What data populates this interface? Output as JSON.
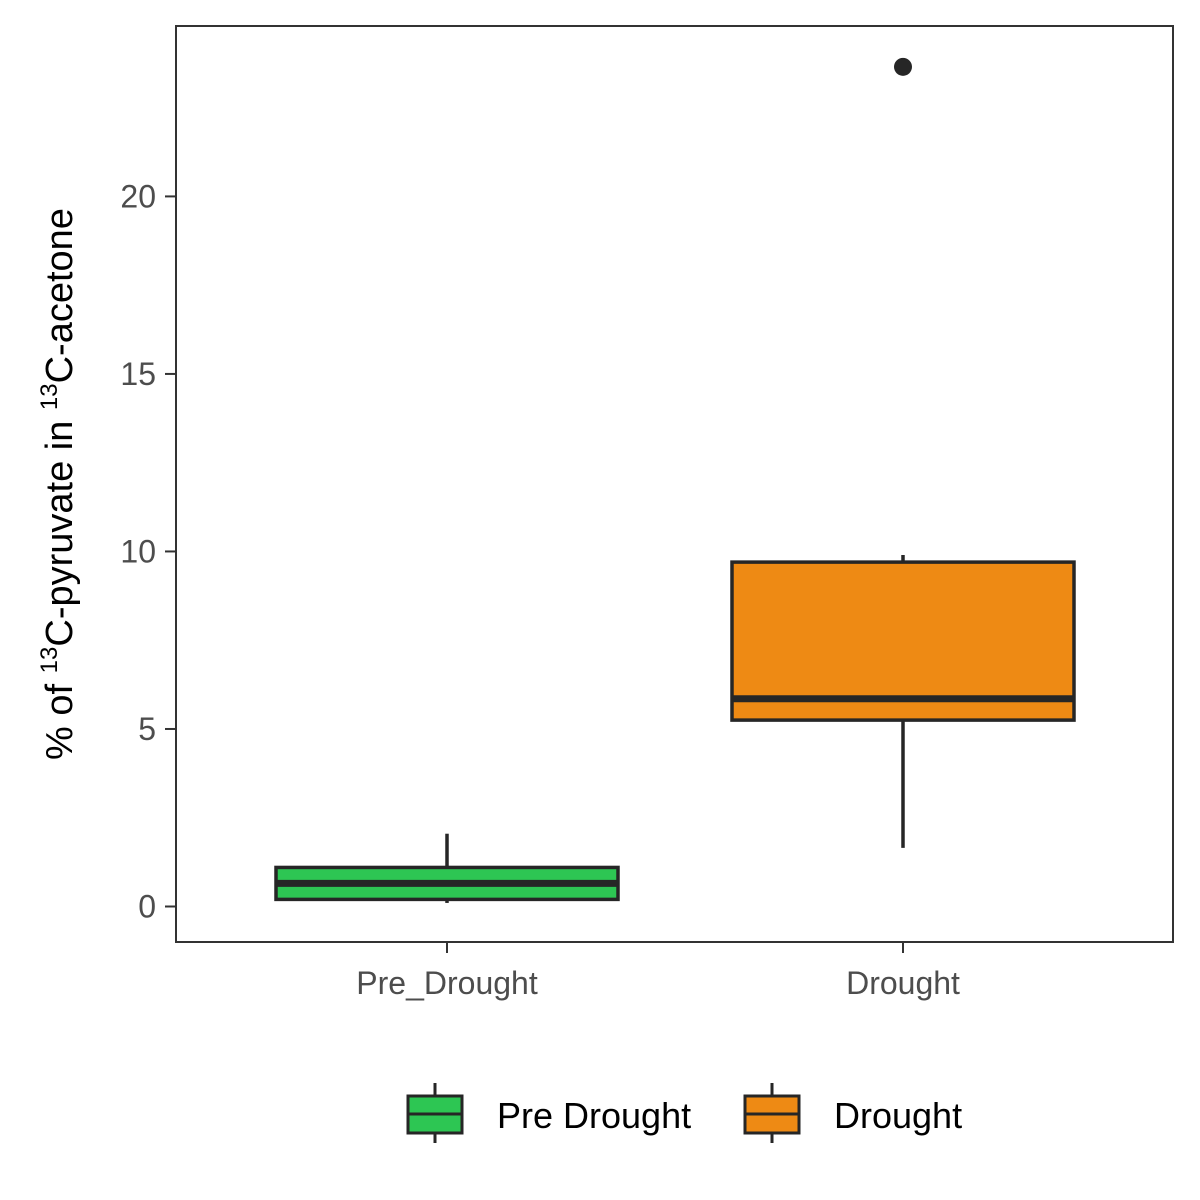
{
  "chart_data": {
    "type": "box",
    "title": "",
    "xlabel": "",
    "ylabel": {
      "prefix": "% of ",
      "sup1": "13",
      "middle": "C-pyruvate in ",
      "sup2": "13",
      "suffix": "C-acetone"
    },
    "ylim": [
      -1.0,
      24.8
    ],
    "y_ticks": [
      0,
      5,
      10,
      15,
      20
    ],
    "grid": false,
    "categories": [
      "Pre_Drought",
      "Drought"
    ],
    "series": [
      {
        "name": "Pre Drought",
        "category": "Pre_Drought",
        "color": "#2dc653",
        "whisker_low": 0.1,
        "q1": 0.2,
        "median": 0.65,
        "q3": 1.1,
        "whisker_high": 2.05,
        "outliers": []
      },
      {
        "name": "Drought",
        "category": "Drought",
        "color": "#ee8a14",
        "whisker_low": 1.65,
        "q1": 5.25,
        "median": 5.85,
        "q3": 9.7,
        "whisker_high": 9.9,
        "outliers": [
          23.65
        ]
      }
    ],
    "legend": {
      "position": "bottom",
      "entries": [
        "Pre Drought",
        "Drought"
      ]
    }
  }
}
